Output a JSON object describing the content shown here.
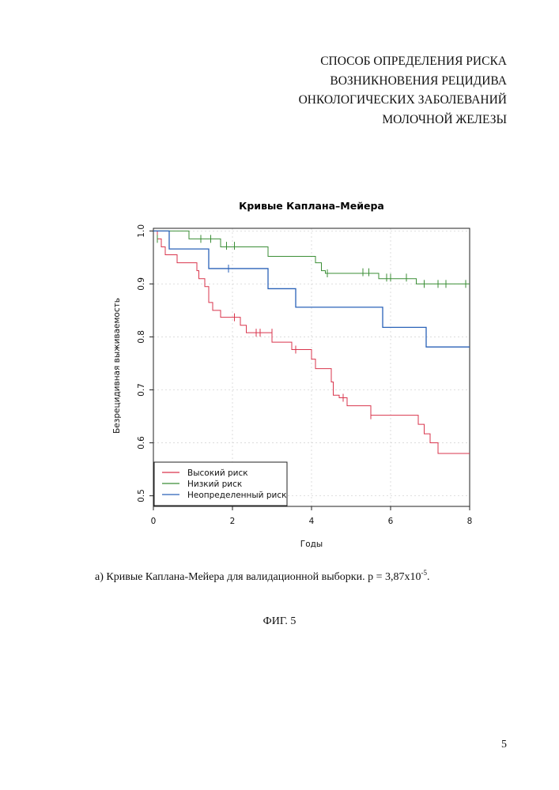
{
  "header": {
    "title_lines": [
      "СПОСОБ ОПРЕДЕЛЕНИЯ РИСКА",
      "ВОЗНИКНОВЕНИЯ РЕЦИДИВА",
      "ОНКОЛОГИЧЕСКИХ ЗАБОЛЕВАНИЙ",
      "МОЛОЧНОЙ ЖЕЛЕЗЫ"
    ]
  },
  "chart_data": {
    "type": "line",
    "step": true,
    "title": "Кривые Каплана–Мейера",
    "xlabel": "Годы",
    "ylabel": "Безрецидивная выживаемость",
    "xlim": [
      0,
      8
    ],
    "ylim": [
      0.48,
      1.005
    ],
    "xticks": [
      "0",
      "2",
      "4",
      "6",
      "8"
    ],
    "yticks": [
      "0.5",
      "0.6",
      "0.7",
      "0.8",
      "0.9",
      "1.0"
    ],
    "grid": true,
    "legend_position": "bottom-left",
    "series": [
      {
        "name": "Высокий риск",
        "color": "#d9354c",
        "steps": [
          [
            0,
            1.0
          ],
          [
            0.1,
            0.985
          ],
          [
            0.2,
            0.97
          ],
          [
            0.3,
            0.955
          ],
          [
            0.6,
            0.94
          ],
          [
            1.1,
            0.925
          ],
          [
            1.15,
            0.91
          ],
          [
            1.3,
            0.895
          ],
          [
            1.4,
            0.865
          ],
          [
            1.5,
            0.85
          ],
          [
            1.7,
            0.837
          ],
          [
            2.2,
            0.822
          ],
          [
            2.35,
            0.808
          ],
          [
            3.0,
            0.79
          ],
          [
            3.5,
            0.776
          ],
          [
            4.0,
            0.758
          ],
          [
            4.1,
            0.74
          ],
          [
            4.5,
            0.715
          ],
          [
            4.55,
            0.69
          ],
          [
            4.7,
            0.685
          ],
          [
            4.9,
            0.67
          ],
          [
            5.5,
            0.652
          ],
          [
            6.7,
            0.635
          ],
          [
            6.85,
            0.617
          ],
          [
            7.0,
            0.6
          ],
          [
            7.2,
            0.58
          ],
          [
            8,
            0.58
          ]
        ],
        "censor": [
          [
            2.05,
            0.837
          ],
          [
            2.6,
            0.808
          ],
          [
            2.7,
            0.808
          ],
          [
            3.0,
            0.808
          ],
          [
            3.6,
            0.776
          ],
          [
            4.8,
            0.685
          ],
          [
            5.5,
            0.652
          ]
        ]
      },
      {
        "name": "Низкий риск",
        "color": "#3b8e36",
        "steps": [
          [
            0,
            1.0
          ],
          [
            0.9,
            0.985
          ],
          [
            1.7,
            0.97
          ],
          [
            2.9,
            0.952
          ],
          [
            4.1,
            0.94
          ],
          [
            4.25,
            0.925
          ],
          [
            4.35,
            0.92
          ],
          [
            5.7,
            0.91
          ],
          [
            6.65,
            0.9
          ],
          [
            8,
            0.9
          ]
        ],
        "censor": [
          [
            0.1,
            0.985
          ],
          [
            1.2,
            0.985
          ],
          [
            1.45,
            0.985
          ],
          [
            1.85,
            0.972
          ],
          [
            2.05,
            0.972
          ],
          [
            4.4,
            0.92
          ],
          [
            5.3,
            0.922
          ],
          [
            5.45,
            0.922
          ],
          [
            5.9,
            0.912
          ],
          [
            6.0,
            0.912
          ],
          [
            6.4,
            0.912
          ],
          [
            6.85,
            0.9
          ],
          [
            7.2,
            0.9
          ],
          [
            7.4,
            0.9
          ],
          [
            7.9,
            0.9
          ]
        ]
      },
      {
        "name": "Неопределенный риск",
        "color": "#2a62b8",
        "steps": [
          [
            0,
            1.0
          ],
          [
            0.4,
            0.966
          ],
          [
            1.4,
            0.929
          ],
          [
            2.9,
            0.891
          ],
          [
            3.6,
            0.856
          ],
          [
            5.8,
            0.818
          ],
          [
            6.9,
            0.781
          ],
          [
            8,
            0.781
          ]
        ],
        "censor": [
          [
            1.9,
            0.929
          ]
        ]
      }
    ]
  },
  "caption": {
    "text": "а) Кривые Каплана-Мейера для валидационной выборки. p = 3,87x10",
    "exponent": "-5",
    "suffix": "."
  },
  "figure_label": "ФИГ. 5",
  "page_number": "5"
}
